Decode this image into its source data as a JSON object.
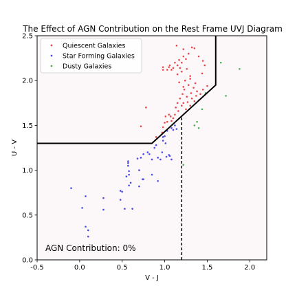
{
  "chart_data": {
    "type": "scatter",
    "title": "The Effect of AGN Contribution on the Rest Frame UVJ Diagram",
    "xlabel": "V - J",
    "ylabel": "U - V",
    "xlim": [
      -0.5,
      2.2
    ],
    "ylim": [
      0.0,
      2.5
    ],
    "xticks": [
      -0.5,
      0.0,
      0.5,
      1.0,
      1.5,
      2.0
    ],
    "xtick_labels": [
      "-0.5",
      "0.0",
      "0.5",
      "1.0",
      "1.5",
      "2.0"
    ],
    "yticks": [
      0.0,
      0.5,
      1.0,
      1.5,
      2.0,
      2.5
    ],
    "ytick_labels": [
      "0.0",
      "0.5",
      "1.0",
      "1.5",
      "2.0",
      "2.5"
    ],
    "grid": false,
    "legend_position": "top-left",
    "annotation": "AGN Contribution: 0%",
    "selection_boundary": [
      [
        -0.5,
        1.3
      ],
      [
        0.85,
        1.3
      ],
      [
        1.6,
        1.95
      ],
      [
        1.6,
        2.5
      ]
    ],
    "vertical_divider": {
      "x": 1.2,
      "y_range": [
        0.0,
        1.6
      ]
    },
    "colors": {
      "quiescent": "#e8474b",
      "star_forming": "#4a4ae6",
      "dusty": "#4caf50",
      "boundary": "#000000",
      "plot_bg": "#fcf8fa"
    },
    "series": [
      {
        "name": "Quiescent Galaxies",
        "color": "#e8474b",
        "points": [
          [
            0.72,
            1.49
          ],
          [
            0.78,
            1.7
          ],
          [
            0.9,
            1.37
          ],
          [
            0.97,
            1.42
          ],
          [
            0.98,
            1.48
          ],
          [
            1.0,
            1.53
          ],
          [
            1.01,
            1.6
          ],
          [
            1.03,
            1.54
          ],
          [
            1.05,
            1.62
          ],
          [
            1.07,
            1.6
          ],
          [
            1.08,
            1.55
          ],
          [
            1.1,
            1.58
          ],
          [
            1.12,
            1.62
          ],
          [
            1.13,
            1.7
          ],
          [
            1.15,
            1.75
          ],
          [
            1.16,
            1.66
          ],
          [
            1.18,
            1.8
          ],
          [
            1.2,
            1.72
          ],
          [
            1.21,
            1.85
          ],
          [
            1.22,
            1.75
          ],
          [
            1.23,
            1.9
          ],
          [
            1.25,
            1.68
          ],
          [
            1.26,
            1.82
          ],
          [
            1.27,
            1.76
          ],
          [
            1.28,
            1.95
          ],
          [
            1.3,
            1.72
          ],
          [
            1.31,
            1.86
          ],
          [
            1.32,
            1.8
          ],
          [
            1.34,
            1.92
          ],
          [
            1.35,
            1.77
          ],
          [
            1.37,
            1.83
          ],
          [
            1.38,
            1.88
          ],
          [
            1.4,
            1.78
          ],
          [
            1.42,
            1.85
          ],
          [
            1.45,
            1.9
          ],
          [
            1.22,
            1.93
          ],
          [
            1.17,
            1.98
          ],
          [
            1.24,
            2.0
          ],
          [
            1.3,
            2.05
          ],
          [
            1.2,
            2.1
          ],
          [
            1.15,
            2.07
          ],
          [
            0.98,
            2.12
          ],
          [
            0.98,
            2.15
          ],
          [
            1.03,
            2.12
          ],
          [
            1.05,
            2.15
          ],
          [
            1.06,
            2.17
          ],
          [
            1.08,
            2.12
          ],
          [
            1.1,
            2.14
          ],
          [
            1.12,
            2.2
          ],
          [
            1.15,
            2.17
          ],
          [
            1.17,
            2.23
          ],
          [
            1.2,
            2.2
          ],
          [
            1.22,
            2.27
          ],
          [
            1.25,
            2.24
          ],
          [
            1.28,
            2.3
          ],
          [
            1.32,
            2.37
          ],
          [
            1.35,
            2.36
          ],
          [
            1.4,
            2.27
          ],
          [
            1.45,
            2.22
          ],
          [
            1.47,
            2.17
          ],
          [
            1.22,
            2.35
          ],
          [
            1.3,
            2.02
          ],
          [
            1.44,
            2.08
          ],
          [
            1.5,
            1.94
          ],
          [
            1.14,
            2.39
          ],
          [
            1.18,
            2.14
          ],
          [
            1.36,
            1.97
          ],
          [
            1.26,
            2.13
          ]
        ]
      },
      {
        "name": "Star Forming Galaxies",
        "color": "#4a4ae6",
        "points": [
          [
            -0.1,
            0.8
          ],
          [
            0.03,
            0.58
          ],
          [
            0.07,
            0.71
          ],
          [
            0.07,
            0.37
          ],
          [
            0.1,
            0.33
          ],
          [
            0.1,
            0.26
          ],
          [
            0.28,
            0.56
          ],
          [
            0.28,
            0.69
          ],
          [
            0.48,
            0.67
          ],
          [
            0.48,
            0.77
          ],
          [
            0.5,
            0.76
          ],
          [
            0.53,
            0.57
          ],
          [
            0.55,
            0.93
          ],
          [
            0.57,
            1.08
          ],
          [
            0.57,
            1.05
          ],
          [
            0.57,
            1.1
          ],
          [
            0.58,
            0.99
          ],
          [
            0.58,
            0.95
          ],
          [
            0.58,
            0.83
          ],
          [
            0.6,
            0.86
          ],
          [
            0.62,
            0.57
          ],
          [
            0.68,
            1.13
          ],
          [
            0.7,
            1.0
          ],
          [
            0.72,
            1.14
          ],
          [
            0.75,
            1.18
          ],
          [
            0.75,
            0.9
          ],
          [
            0.8,
            1.2
          ],
          [
            0.82,
            1.18
          ],
          [
            0.85,
            1.12
          ],
          [
            0.88,
            1.25
          ],
          [
            0.9,
            1.28
          ],
          [
            0.92,
            1.14
          ],
          [
            0.95,
            1.12
          ],
          [
            0.97,
            1.2
          ],
          [
            0.98,
            1.33
          ],
          [
            0.98,
            1.37
          ],
          [
            1.0,
            1.38
          ],
          [
            1.01,
            1.3
          ],
          [
            1.03,
            1.44
          ],
          [
            1.05,
            1.17
          ],
          [
            1.06,
            1.16
          ],
          [
            1.08,
            1.47
          ],
          [
            1.1,
            1.45
          ],
          [
            1.12,
            1.5
          ],
          [
            1.14,
            1.46
          ],
          [
            1.08,
            1.12
          ],
          [
            0.7,
            0.82
          ],
          [
            0.85,
            0.95
          ],
          [
            0.74,
            0.9
          ],
          [
            0.92,
            0.88
          ],
          [
            1.02,
            1.15
          ]
        ]
      },
      {
        "name": "Dusty Galaxies",
        "color": "#4caf50",
        "points": [
          [
            1.22,
            1.06
          ],
          [
            1.35,
            1.5
          ],
          [
            1.38,
            1.54
          ],
          [
            1.4,
            1.47
          ],
          [
            1.44,
            1.68
          ],
          [
            1.48,
            1.86
          ],
          [
            1.72,
            1.83
          ],
          [
            1.66,
            2.2
          ],
          [
            1.88,
            2.13
          ]
        ]
      }
    ]
  }
}
